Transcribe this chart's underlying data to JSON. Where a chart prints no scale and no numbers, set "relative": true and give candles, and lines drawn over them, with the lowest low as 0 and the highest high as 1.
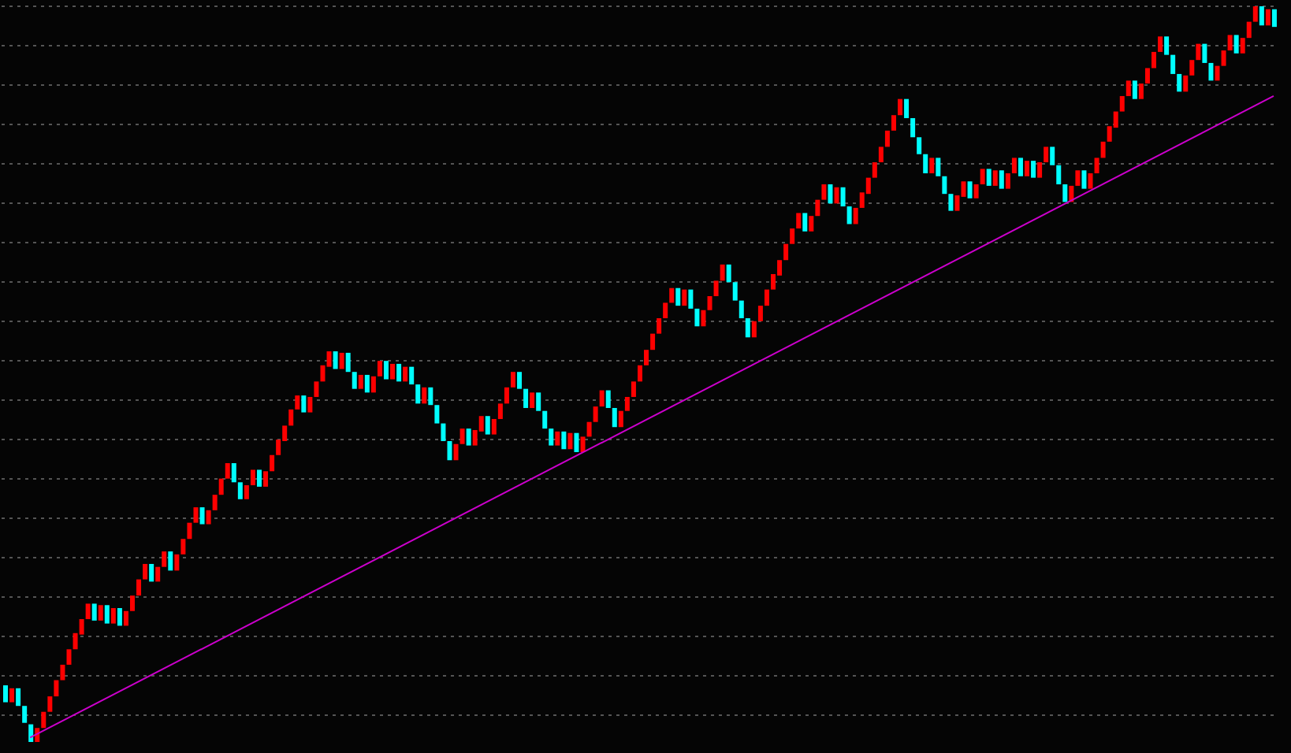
{
  "chart_data": {
    "type": "candlestick",
    "relative": true,
    "grid": "y",
    "categories": [
      null,
      null,
      null,
      null,
      null,
      null,
      null,
      null,
      null,
      null,
      null,
      null,
      null,
      null,
      null,
      null,
      null,
      null,
      null,
      null,
      null,
      null,
      null,
      null,
      null,
      null,
      null,
      null,
      null,
      null,
      null,
      null,
      null,
      null,
      null,
      null,
      null,
      null,
      null,
      null,
      null,
      null,
      null,
      null,
      null,
      null,
      null,
      null,
      null,
      null,
      null,
      null,
      null,
      null,
      null,
      null,
      null,
      null,
      null,
      null,
      null,
      null,
      null,
      null,
      null,
      null,
      null,
      null,
      null,
      null,
      null,
      null,
      null,
      null,
      null,
      null,
      null,
      null,
      null,
      null,
      null,
      null,
      null,
      null,
      null,
      null,
      null,
      null,
      null,
      null,
      null,
      null,
      null,
      null,
      null,
      null,
      null,
      null,
      null,
      null,
      null,
      null,
      null,
      null,
      null,
      null,
      null,
      null,
      null,
      null,
      null,
      null,
      null,
      null,
      null,
      null,
      null,
      null,
      null,
      null,
      null,
      null,
      null,
      null,
      null,
      null,
      null,
      null,
      null,
      null,
      null,
      null,
      null,
      null,
      null,
      null,
      null,
      null,
      null,
      null,
      null,
      null,
      null,
      null,
      null,
      null,
      null,
      null,
      null,
      null,
      null,
      null,
      null,
      null,
      null,
      null,
      null,
      null,
      null,
      null,
      null,
      null,
      null,
      null,
      null,
      null,
      null,
      null,
      null,
      null,
      null,
      null,
      null,
      null,
      null,
      null,
      null,
      null,
      null,
      null,
      null,
      null,
      null,
      null,
      null,
      null,
      null,
      null,
      null,
      null,
      null,
      null,
      null,
      null,
      null,
      null,
      null,
      null,
      null,
      null,
      null
    ],
    "ohlc": [
      [
        0.077,
        0.077,
        0.054,
        0.054
      ],
      [
        0.054,
        0.073,
        0.054,
        0.073
      ],
      [
        0.073,
        0.073,
        0.049,
        0.049
      ],
      [
        0.049,
        0.049,
        0.026,
        0.026
      ],
      [
        0.024,
        0.024,
        0,
        0
      ],
      [
        0,
        0.019,
        0,
        0.019
      ],
      [
        0.019,
        0.041,
        0.019,
        0.041
      ],
      [
        0.041,
        0.062,
        0.041,
        0.062
      ],
      [
        0.062,
        0.084,
        0.062,
        0.084
      ],
      [
        0.084,
        0.105,
        0.084,
        0.105
      ],
      [
        0.105,
        0.126,
        0.105,
        0.126
      ],
      [
        0.126,
        0.148,
        0.126,
        0.148
      ],
      [
        0.146,
        0.167,
        0.146,
        0.167
      ],
      [
        0.167,
        0.188,
        0.167,
        0.188
      ],
      [
        0.188,
        0.188,
        0.165,
        0.165
      ],
      [
        0.165,
        0.186,
        0.165,
        0.186
      ],
      [
        0.186,
        0.186,
        0.161,
        0.161
      ],
      [
        0.161,
        0.182,
        0.161,
        0.182
      ],
      [
        0.182,
        0.182,
        0.158,
        0.158
      ],
      [
        0.158,
        0.178,
        0.158,
        0.178
      ],
      [
        0.178,
        0.199,
        0.178,
        0.199
      ],
      [
        0.199,
        0.221,
        0.199,
        0.221
      ],
      [
        0.221,
        0.242,
        0.221,
        0.242
      ],
      [
        0.242,
        0.242,
        0.218,
        0.218
      ],
      [
        0.218,
        0.238,
        0.218,
        0.238
      ],
      [
        0.238,
        0.259,
        0.238,
        0.259
      ],
      [
        0.259,
        0.259,
        0.233,
        0.233
      ],
      [
        0.233,
        0.255,
        0.233,
        0.255
      ],
      [
        0.255,
        0.276,
        0.255,
        0.276
      ],
      [
        0.276,
        0.298,
        0.276,
        0.298
      ],
      [
        0.298,
        0.319,
        0.298,
        0.319
      ],
      [
        0.319,
        0.319,
        0.296,
        0.296
      ],
      [
        0.296,
        0.315,
        0.296,
        0.315
      ],
      [
        0.315,
        0.336,
        0.315,
        0.336
      ],
      [
        0.336,
        0.358,
        0.336,
        0.358
      ],
      [
        0.358,
        0.379,
        0.358,
        0.379
      ],
      [
        0.379,
        0.379,
        0.353,
        0.353
      ],
      [
        0.353,
        0.353,
        0.33,
        0.33
      ],
      [
        0.33,
        0.349,
        0.33,
        0.349
      ],
      [
        0.349,
        0.37,
        0.349,
        0.37
      ],
      [
        0.37,
        0.37,
        0.347,
        0.347
      ],
      [
        0.347,
        0.368,
        0.347,
        0.368
      ],
      [
        0.368,
        0.39,
        0.368,
        0.39
      ],
      [
        0.39,
        0.411,
        0.39,
        0.411
      ],
      [
        0.409,
        0.43,
        0.409,
        0.43
      ],
      [
        0.43,
        0.452,
        0.43,
        0.452
      ],
      [
        0.452,
        0.471,
        0.452,
        0.471
      ],
      [
        0.471,
        0.471,
        0.448,
        0.448
      ],
      [
        0.448,
        0.469,
        0.448,
        0.469
      ],
      [
        0.469,
        0.49,
        0.469,
        0.49
      ],
      [
        0.49,
        0.512,
        0.49,
        0.512
      ],
      [
        0.51,
        0.531,
        0.51,
        0.531
      ],
      [
        0.531,
        0.531,
        0.507,
        0.507
      ],
      [
        0.507,
        0.529,
        0.507,
        0.529
      ],
      [
        0.529,
        0.529,
        0.503,
        0.503
      ],
      [
        0.503,
        0.503,
        0.48,
        0.48
      ],
      [
        0.48,
        0.499,
        0.48,
        0.499
      ],
      [
        0.499,
        0.499,
        0.475,
        0.475
      ],
      [
        0.475,
        0.497,
        0.475,
        0.497
      ],
      [
        0.497,
        0.518,
        0.497,
        0.518
      ],
      [
        0.518,
        0.518,
        0.493,
        0.493
      ],
      [
        0.493,
        0.514,
        0.493,
        0.514
      ],
      [
        0.514,
        0.514,
        0.49,
        0.49
      ],
      [
        0.49,
        0.51,
        0.49,
        0.51
      ],
      [
        0.51,
        0.51,
        0.486,
        0.486
      ],
      [
        0.486,
        0.486,
        0.46,
        0.46
      ],
      [
        0.46,
        0.482,
        0.46,
        0.482
      ],
      [
        0.482,
        0.482,
        0.458,
        0.458
      ],
      [
        0.458,
        0.458,
        0.433,
        0.433
      ],
      [
        0.433,
        0.433,
        0.409,
        0.409
      ],
      [
        0.409,
        0.409,
        0.383,
        0.383
      ],
      [
        0.383,
        0.405,
        0.383,
        0.405
      ],
      [
        0.405,
        0.426,
        0.405,
        0.426
      ],
      [
        0.426,
        0.426,
        0.403,
        0.403
      ],
      [
        0.403,
        0.424,
        0.403,
        0.424
      ],
      [
        0.422,
        0.443,
        0.422,
        0.443
      ],
      [
        0.443,
        0.443,
        0.418,
        0.418
      ],
      [
        0.418,
        0.439,
        0.418,
        0.439
      ],
      [
        0.439,
        0.46,
        0.439,
        0.46
      ],
      [
        0.46,
        0.482,
        0.46,
        0.482
      ],
      [
        0.482,
        0.503,
        0.482,
        0.503
      ],
      [
        0.503,
        0.503,
        0.48,
        0.48
      ],
      [
        0.48,
        0.48,
        0.454,
        0.454
      ],
      [
        0.454,
        0.475,
        0.454,
        0.475
      ],
      [
        0.475,
        0.475,
        0.45,
        0.45
      ],
      [
        0.45,
        0.45,
        0.426,
        0.426
      ],
      [
        0.426,
        0.426,
        0.403,
        0.403
      ],
      [
        0.403,
        0.422,
        0.403,
        0.422
      ],
      [
        0.422,
        0.422,
        0.398,
        0.398
      ],
      [
        0.398,
        0.42,
        0.398,
        0.42
      ],
      [
        0.42,
        0.42,
        0.394,
        0.394
      ],
      [
        0.394,
        0.415,
        0.394,
        0.415
      ],
      [
        0.415,
        0.435,
        0.415,
        0.435
      ],
      [
        0.435,
        0.456,
        0.435,
        0.456
      ],
      [
        0.456,
        0.478,
        0.456,
        0.478
      ],
      [
        0.478,
        0.478,
        0.454,
        0.454
      ],
      [
        0.454,
        0.454,
        0.428,
        0.428
      ],
      [
        0.428,
        0.45,
        0.428,
        0.45
      ],
      [
        0.45,
        0.469,
        0.45,
        0.469
      ],
      [
        0.469,
        0.49,
        0.469,
        0.49
      ],
      [
        0.49,
        0.512,
        0.49,
        0.512
      ],
      [
        0.512,
        0.533,
        0.512,
        0.533
      ],
      [
        0.533,
        0.555,
        0.533,
        0.555
      ],
      [
        0.555,
        0.576,
        0.555,
        0.576
      ],
      [
        0.576,
        0.597,
        0.576,
        0.597
      ],
      [
        0.597,
        0.617,
        0.597,
        0.617
      ],
      [
        0.617,
        0.617,
        0.593,
        0.593
      ],
      [
        0.593,
        0.615,
        0.593,
        0.615
      ],
      [
        0.615,
        0.615,
        0.589,
        0.589
      ],
      [
        0.589,
        0.589,
        0.565,
        0.565
      ],
      [
        0.565,
        0.587,
        0.565,
        0.587
      ],
      [
        0.587,
        0.606,
        0.587,
        0.606
      ],
      [
        0.606,
        0.627,
        0.606,
        0.627
      ],
      [
        0.627,
        0.649,
        0.627,
        0.649
      ],
      [
        0.649,
        0.649,
        0.625,
        0.625
      ],
      [
        0.625,
        0.625,
        0.6,
        0.6
      ],
      [
        0.6,
        0.6,
        0.576,
        0.576
      ],
      [
        0.576,
        0.576,
        0.55,
        0.55
      ],
      [
        0.55,
        0.572,
        0.55,
        0.572
      ],
      [
        0.572,
        0.593,
        0.572,
        0.593
      ],
      [
        0.593,
        0.615,
        0.593,
        0.615
      ],
      [
        0.615,
        0.636,
        0.615,
        0.636
      ],
      [
        0.634,
        0.655,
        0.634,
        0.655
      ],
      [
        0.655,
        0.677,
        0.655,
        0.677
      ],
      [
        0.677,
        0.698,
        0.677,
        0.698
      ],
      [
        0.698,
        0.719,
        0.698,
        0.719
      ],
      [
        0.719,
        0.719,
        0.694,
        0.694
      ],
      [
        0.694,
        0.715,
        0.694,
        0.715
      ],
      [
        0.715,
        0.737,
        0.715,
        0.737
      ],
      [
        0.737,
        0.758,
        0.737,
        0.758
      ],
      [
        0.758,
        0.758,
        0.732,
        0.732
      ],
      [
        0.732,
        0.754,
        0.732,
        0.754
      ],
      [
        0.754,
        0.754,
        0.728,
        0.728
      ],
      [
        0.728,
        0.728,
        0.704,
        0.704
      ],
      [
        0.704,
        0.726,
        0.704,
        0.726
      ],
      [
        0.726,
        0.747,
        0.726,
        0.747
      ],
      [
        0.745,
        0.767,
        0.745,
        0.767
      ],
      [
        0.767,
        0.788,
        0.767,
        0.788
      ],
      [
        0.788,
        0.809,
        0.788,
        0.809
      ],
      [
        0.809,
        0.831,
        0.809,
        0.831
      ],
      [
        0.831,
        0.852,
        0.831,
        0.852
      ],
      [
        0.852,
        0.874,
        0.852,
        0.874
      ],
      [
        0.874,
        0.874,
        0.848,
        0.848
      ],
      [
        0.848,
        0.848,
        0.822,
        0.822
      ],
      [
        0.822,
        0.822,
        0.799,
        0.799
      ],
      [
        0.799,
        0.799,
        0.773,
        0.773
      ],
      [
        0.773,
        0.794,
        0.773,
        0.794
      ],
      [
        0.794,
        0.794,
        0.769,
        0.769
      ],
      [
        0.769,
        0.769,
        0.745,
        0.745
      ],
      [
        0.745,
        0.745,
        0.722,
        0.722
      ],
      [
        0.722,
        0.743,
        0.722,
        0.743
      ],
      [
        0.741,
        0.762,
        0.741,
        0.762
      ],
      [
        0.762,
        0.762,
        0.739,
        0.739
      ],
      [
        0.739,
        0.758,
        0.739,
        0.758
      ],
      [
        0.758,
        0.779,
        0.758,
        0.779
      ],
      [
        0.779,
        0.779,
        0.756,
        0.756
      ],
      [
        0.756,
        0.777,
        0.756,
        0.777
      ],
      [
        0.777,
        0.777,
        0.752,
        0.752
      ],
      [
        0.752,
        0.773,
        0.752,
        0.773
      ],
      [
        0.773,
        0.794,
        0.773,
        0.794
      ],
      [
        0.794,
        0.794,
        0.769,
        0.769
      ],
      [
        0.769,
        0.79,
        0.769,
        0.79
      ],
      [
        0.79,
        0.79,
        0.767,
        0.767
      ],
      [
        0.767,
        0.788,
        0.767,
        0.788
      ],
      [
        0.788,
        0.809,
        0.788,
        0.809
      ],
      [
        0.809,
        0.809,
        0.784,
        0.784
      ],
      [
        0.784,
        0.784,
        0.758,
        0.758
      ],
      [
        0.758,
        0.758,
        0.734,
        0.734
      ],
      [
        0.734,
        0.756,
        0.734,
        0.756
      ],
      [
        0.756,
        0.777,
        0.756,
        0.777
      ],
      [
        0.777,
        0.777,
        0.752,
        0.752
      ],
      [
        0.752,
        0.773,
        0.752,
        0.773
      ],
      [
        0.773,
        0.794,
        0.773,
        0.794
      ],
      [
        0.794,
        0.816,
        0.794,
        0.816
      ],
      [
        0.816,
        0.837,
        0.816,
        0.837
      ],
      [
        0.835,
        0.857,
        0.835,
        0.857
      ],
      [
        0.857,
        0.878,
        0.857,
        0.878
      ],
      [
        0.878,
        0.899,
        0.878,
        0.899
      ],
      [
        0.899,
        0.899,
        0.874,
        0.874
      ],
      [
        0.874,
        0.895,
        0.874,
        0.895
      ],
      [
        0.895,
        0.916,
        0.895,
        0.916
      ],
      [
        0.916,
        0.938,
        0.916,
        0.938
      ],
      [
        0.938,
        0.959,
        0.938,
        0.959
      ],
      [
        0.959,
        0.959,
        0.934,
        0.934
      ],
      [
        0.934,
        0.934,
        0.908,
        0.908
      ],
      [
        0.908,
        0.908,
        0.884,
        0.884
      ],
      [
        0.884,
        0.906,
        0.884,
        0.906
      ],
      [
        0.906,
        0.927,
        0.906,
        0.927
      ],
      [
        0.927,
        0.949,
        0.927,
        0.949
      ],
      [
        0.949,
        0.949,
        0.923,
        0.923
      ],
      [
        0.923,
        0.923,
        0.899,
        0.899
      ],
      [
        0.899,
        0.919,
        0.899,
        0.919
      ],
      [
        0.919,
        0.94,
        0.919,
        0.94
      ],
      [
        0.94,
        0.961,
        0.94,
        0.961
      ],
      [
        0.961,
        0.961,
        0.936,
        0.936
      ],
      [
        0.936,
        0.957,
        0.936,
        0.957
      ],
      [
        0.957,
        0.979,
        0.957,
        0.979
      ],
      [
        0.979,
        1,
        0.979,
        1
      ],
      [
        1,
        1,
        0.974,
        0.974
      ],
      [
        0.974,
        0.996,
        0.974,
        0.996
      ],
      [
        0.996,
        0.996,
        0.972,
        0.972
      ]
    ],
    "colors": [
      "#00ffff",
      "#ff0000",
      "#00ffff",
      "#00ffff",
      "#00ffff",
      "#ff0000",
      "#ff0000",
      "#ff0000",
      "#ff0000",
      "#ff0000",
      "#ff0000",
      "#ff0000",
      "#ff0000",
      "#ff0000",
      "#00ffff",
      "#ff0000",
      "#00ffff",
      "#ff0000",
      "#00ffff",
      "#ff0000",
      "#ff0000",
      "#ff0000",
      "#ff0000",
      "#00ffff",
      "#ff0000",
      "#ff0000",
      "#00ffff",
      "#ff0000",
      "#ff0000",
      "#ff0000",
      "#ff0000",
      "#00ffff",
      "#ff0000",
      "#ff0000",
      "#ff0000",
      "#ff0000",
      "#00ffff",
      "#00ffff",
      "#ff0000",
      "#ff0000",
      "#00ffff",
      "#ff0000",
      "#ff0000",
      "#ff0000",
      "#ff0000",
      "#ff0000",
      "#ff0000",
      "#00ffff",
      "#ff0000",
      "#ff0000",
      "#ff0000",
      "#ff0000",
      "#00ffff",
      "#ff0000",
      "#00ffff",
      "#00ffff",
      "#ff0000",
      "#00ffff",
      "#ff0000",
      "#ff0000",
      "#00ffff",
      "#ff0000",
      "#00ffff",
      "#ff0000",
      "#00ffff",
      "#00ffff",
      "#ff0000",
      "#00ffff",
      "#00ffff",
      "#00ffff",
      "#00ffff",
      "#ff0000",
      "#ff0000",
      "#00ffff",
      "#ff0000",
      "#ff0000",
      "#00ffff",
      "#ff0000",
      "#ff0000",
      "#ff0000",
      "#ff0000",
      "#00ffff",
      "#00ffff",
      "#ff0000",
      "#00ffff",
      "#00ffff",
      "#00ffff",
      "#ff0000",
      "#00ffff",
      "#ff0000",
      "#00ffff",
      "#ff0000",
      "#ff0000",
      "#ff0000",
      "#ff0000",
      "#00ffff",
      "#00ffff",
      "#ff0000",
      "#ff0000",
      "#ff0000",
      "#ff0000",
      "#ff0000",
      "#ff0000",
      "#ff0000",
      "#ff0000",
      "#ff0000",
      "#00ffff",
      "#ff0000",
      "#00ffff",
      "#00ffff",
      "#ff0000",
      "#ff0000",
      "#ff0000",
      "#ff0000",
      "#00ffff",
      "#00ffff",
      "#00ffff",
      "#00ffff",
      "#ff0000",
      "#ff0000",
      "#ff0000",
      "#ff0000",
      "#ff0000",
      "#ff0000",
      "#ff0000",
      "#ff0000",
      "#00ffff",
      "#ff0000",
      "#ff0000",
      "#ff0000",
      "#00ffff",
      "#ff0000",
      "#00ffff",
      "#00ffff",
      "#ff0000",
      "#ff0000",
      "#ff0000",
      "#ff0000",
      "#ff0000",
      "#ff0000",
      "#ff0000",
      "#ff0000",
      "#00ffff",
      "#00ffff",
      "#00ffff",
      "#00ffff",
      "#ff0000",
      "#00ffff",
      "#00ffff",
      "#00ffff",
      "#ff0000",
      "#ff0000",
      "#00ffff",
      "#ff0000",
      "#ff0000",
      "#00ffff",
      "#ff0000",
      "#00ffff",
      "#ff0000",
      "#ff0000",
      "#00ffff",
      "#ff0000",
      "#00ffff",
      "#ff0000",
      "#ff0000",
      "#00ffff",
      "#00ffff",
      "#00ffff",
      "#ff0000",
      "#ff0000",
      "#00ffff",
      "#ff0000",
      "#ff0000",
      "#ff0000",
      "#ff0000",
      "#ff0000",
      "#ff0000",
      "#ff0000",
      "#00ffff",
      "#ff0000",
      "#ff0000",
      "#ff0000",
      "#ff0000",
      "#00ffff",
      "#00ffff",
      "#00ffff",
      "#ff0000",
      "#ff0000",
      "#ff0000",
      "#00ffff",
      "#00ffff",
      "#ff0000",
      "#ff0000",
      "#ff0000",
      "#00ffff",
      "#ff0000",
      "#ff0000",
      "#ff0000",
      "#00ffff",
      "#ff0000",
      "#00ffff"
    ],
    "series": [
      {
        "type": "line",
        "color": "#cc00cc",
        "values": [
          null,
          null,
          null,
          null,
          0.006,
          null,
          null,
          null,
          null,
          null,
          null,
          null,
          null,
          null,
          null,
          null,
          null,
          null,
          null,
          null,
          null,
          null,
          null,
          null,
          null,
          null,
          null,
          null,
          null,
          null,
          null,
          null,
          null,
          null,
          null,
          null,
          null,
          null,
          null,
          null,
          null,
          null,
          null,
          null,
          null,
          null,
          null,
          null,
          null,
          null,
          null,
          null,
          null,
          null,
          null,
          null,
          null,
          null,
          null,
          null,
          null,
          null,
          null,
          null,
          null,
          null,
          null,
          null,
          null,
          null,
          null,
          null,
          null,
          null,
          null,
          null,
          null,
          null,
          null,
          null,
          null,
          null,
          null,
          null,
          null,
          null,
          null,
          null,
          null,
          null,
          null,
          null,
          null,
          null,
          null,
          null,
          null,
          null,
          null,
          null,
          null,
          null,
          null,
          null,
          null,
          null,
          null,
          null,
          null,
          null,
          null,
          null,
          null,
          null,
          null,
          null,
          null,
          null,
          null,
          null,
          null,
          null,
          null,
          null,
          null,
          null,
          null,
          null,
          null,
          null,
          null,
          null,
          null,
          null,
          null,
          null,
          null,
          null,
          null,
          null,
          null,
          null,
          null,
          null,
          null,
          null,
          null,
          null,
          null,
          null,
          null,
          null,
          null,
          null,
          null,
          null,
          null,
          null,
          null,
          null,
          null,
          null,
          null,
          null,
          null,
          null,
          null,
          null,
          null,
          null,
          null,
          null,
          null,
          null,
          null,
          null,
          null,
          null,
          null,
          null,
          null,
          null,
          null,
          null,
          null,
          null,
          null,
          null,
          null,
          null,
          null,
          null,
          null,
          null,
          null,
          null,
          null,
          null,
          null,
          null,
          0.878
        ]
      }
    ]
  }
}
